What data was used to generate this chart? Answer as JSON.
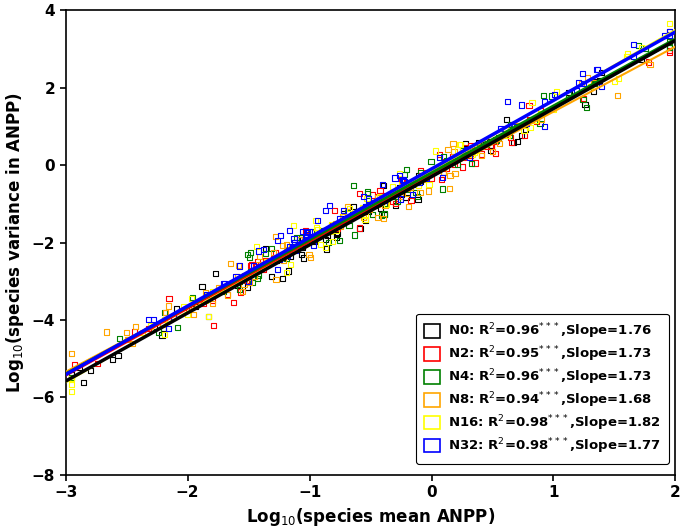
{
  "title": "",
  "xlabel": "Log$_{10}$(species mean ANPP)",
  "ylabel": "Log$_{10}$(species variance in ANPP)",
  "xlim": [
    -3,
    2
  ],
  "ylim": [
    -8,
    4
  ],
  "xticks": [
    -3,
    -2,
    -1,
    0,
    1,
    2
  ],
  "yticks": [
    -8,
    -6,
    -4,
    -2,
    0,
    2,
    4
  ],
  "groups": [
    {
      "name": "N0",
      "color": "black",
      "r2": 0.96,
      "slope": 1.76,
      "intercept": -0.3
    },
    {
      "name": "N2",
      "color": "red",
      "r2": 0.95,
      "slope": 1.73,
      "intercept": -0.25
    },
    {
      "name": "N4",
      "color": "green",
      "r2": 0.96,
      "slope": 1.73,
      "intercept": -0.2
    },
    {
      "name": "N8",
      "color": "orange",
      "r2": 0.94,
      "slope": 1.68,
      "intercept": -0.3
    },
    {
      "name": "N16",
      "color": "yellow",
      "r2": 0.98,
      "slope": 1.82,
      "intercept": -0.15
    },
    {
      "name": "N32",
      "color": "blue",
      "r2": 0.98,
      "slope": 1.77,
      "intercept": -0.1
    }
  ],
  "n_points": 80,
  "seed": 42,
  "line_order": [
    "yellow",
    "green",
    "blue",
    "black",
    "red",
    "orange"
  ],
  "line_widths": {
    "black": 2.5,
    "blue": 2.5,
    "green": 2.0,
    "red": 1.5,
    "orange": 1.5,
    "yellow": 1.5
  },
  "line_zorders": {
    "black": 6,
    "blue": 5,
    "green": 4,
    "red": 3,
    "orange": 2,
    "yellow": 1
  },
  "legend_labels": [
    "N0: R$^{2}$=0.96$^{***}$,Slope=1.76",
    "N2: R$^{2}$=0.95$^{***}$,Slope=1.73",
    "N4: R$^{2}$=0.96$^{***}$,Slope=1.73",
    "N8: R$^{2}$=0.94$^{***}$,Slope=1.68",
    "N16: R$^{2}$=0.98$^{***}$,Slope=1.82",
    "N32: R$^{2}$=0.98$^{***}$,Slope=1.77"
  ]
}
